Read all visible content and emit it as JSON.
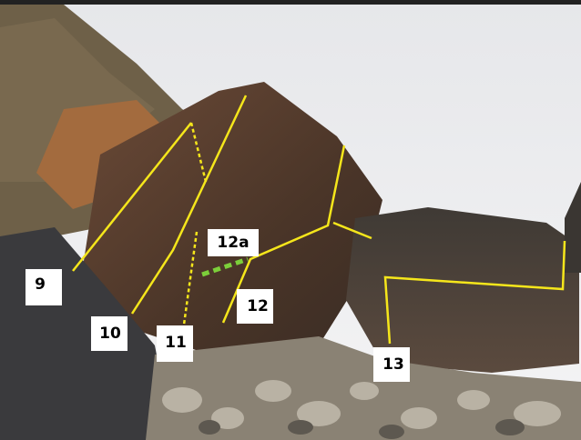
{
  "routes": [
    "9",
    "10",
    "11",
    "12a",
    "12",
    "13"
  ]
}
